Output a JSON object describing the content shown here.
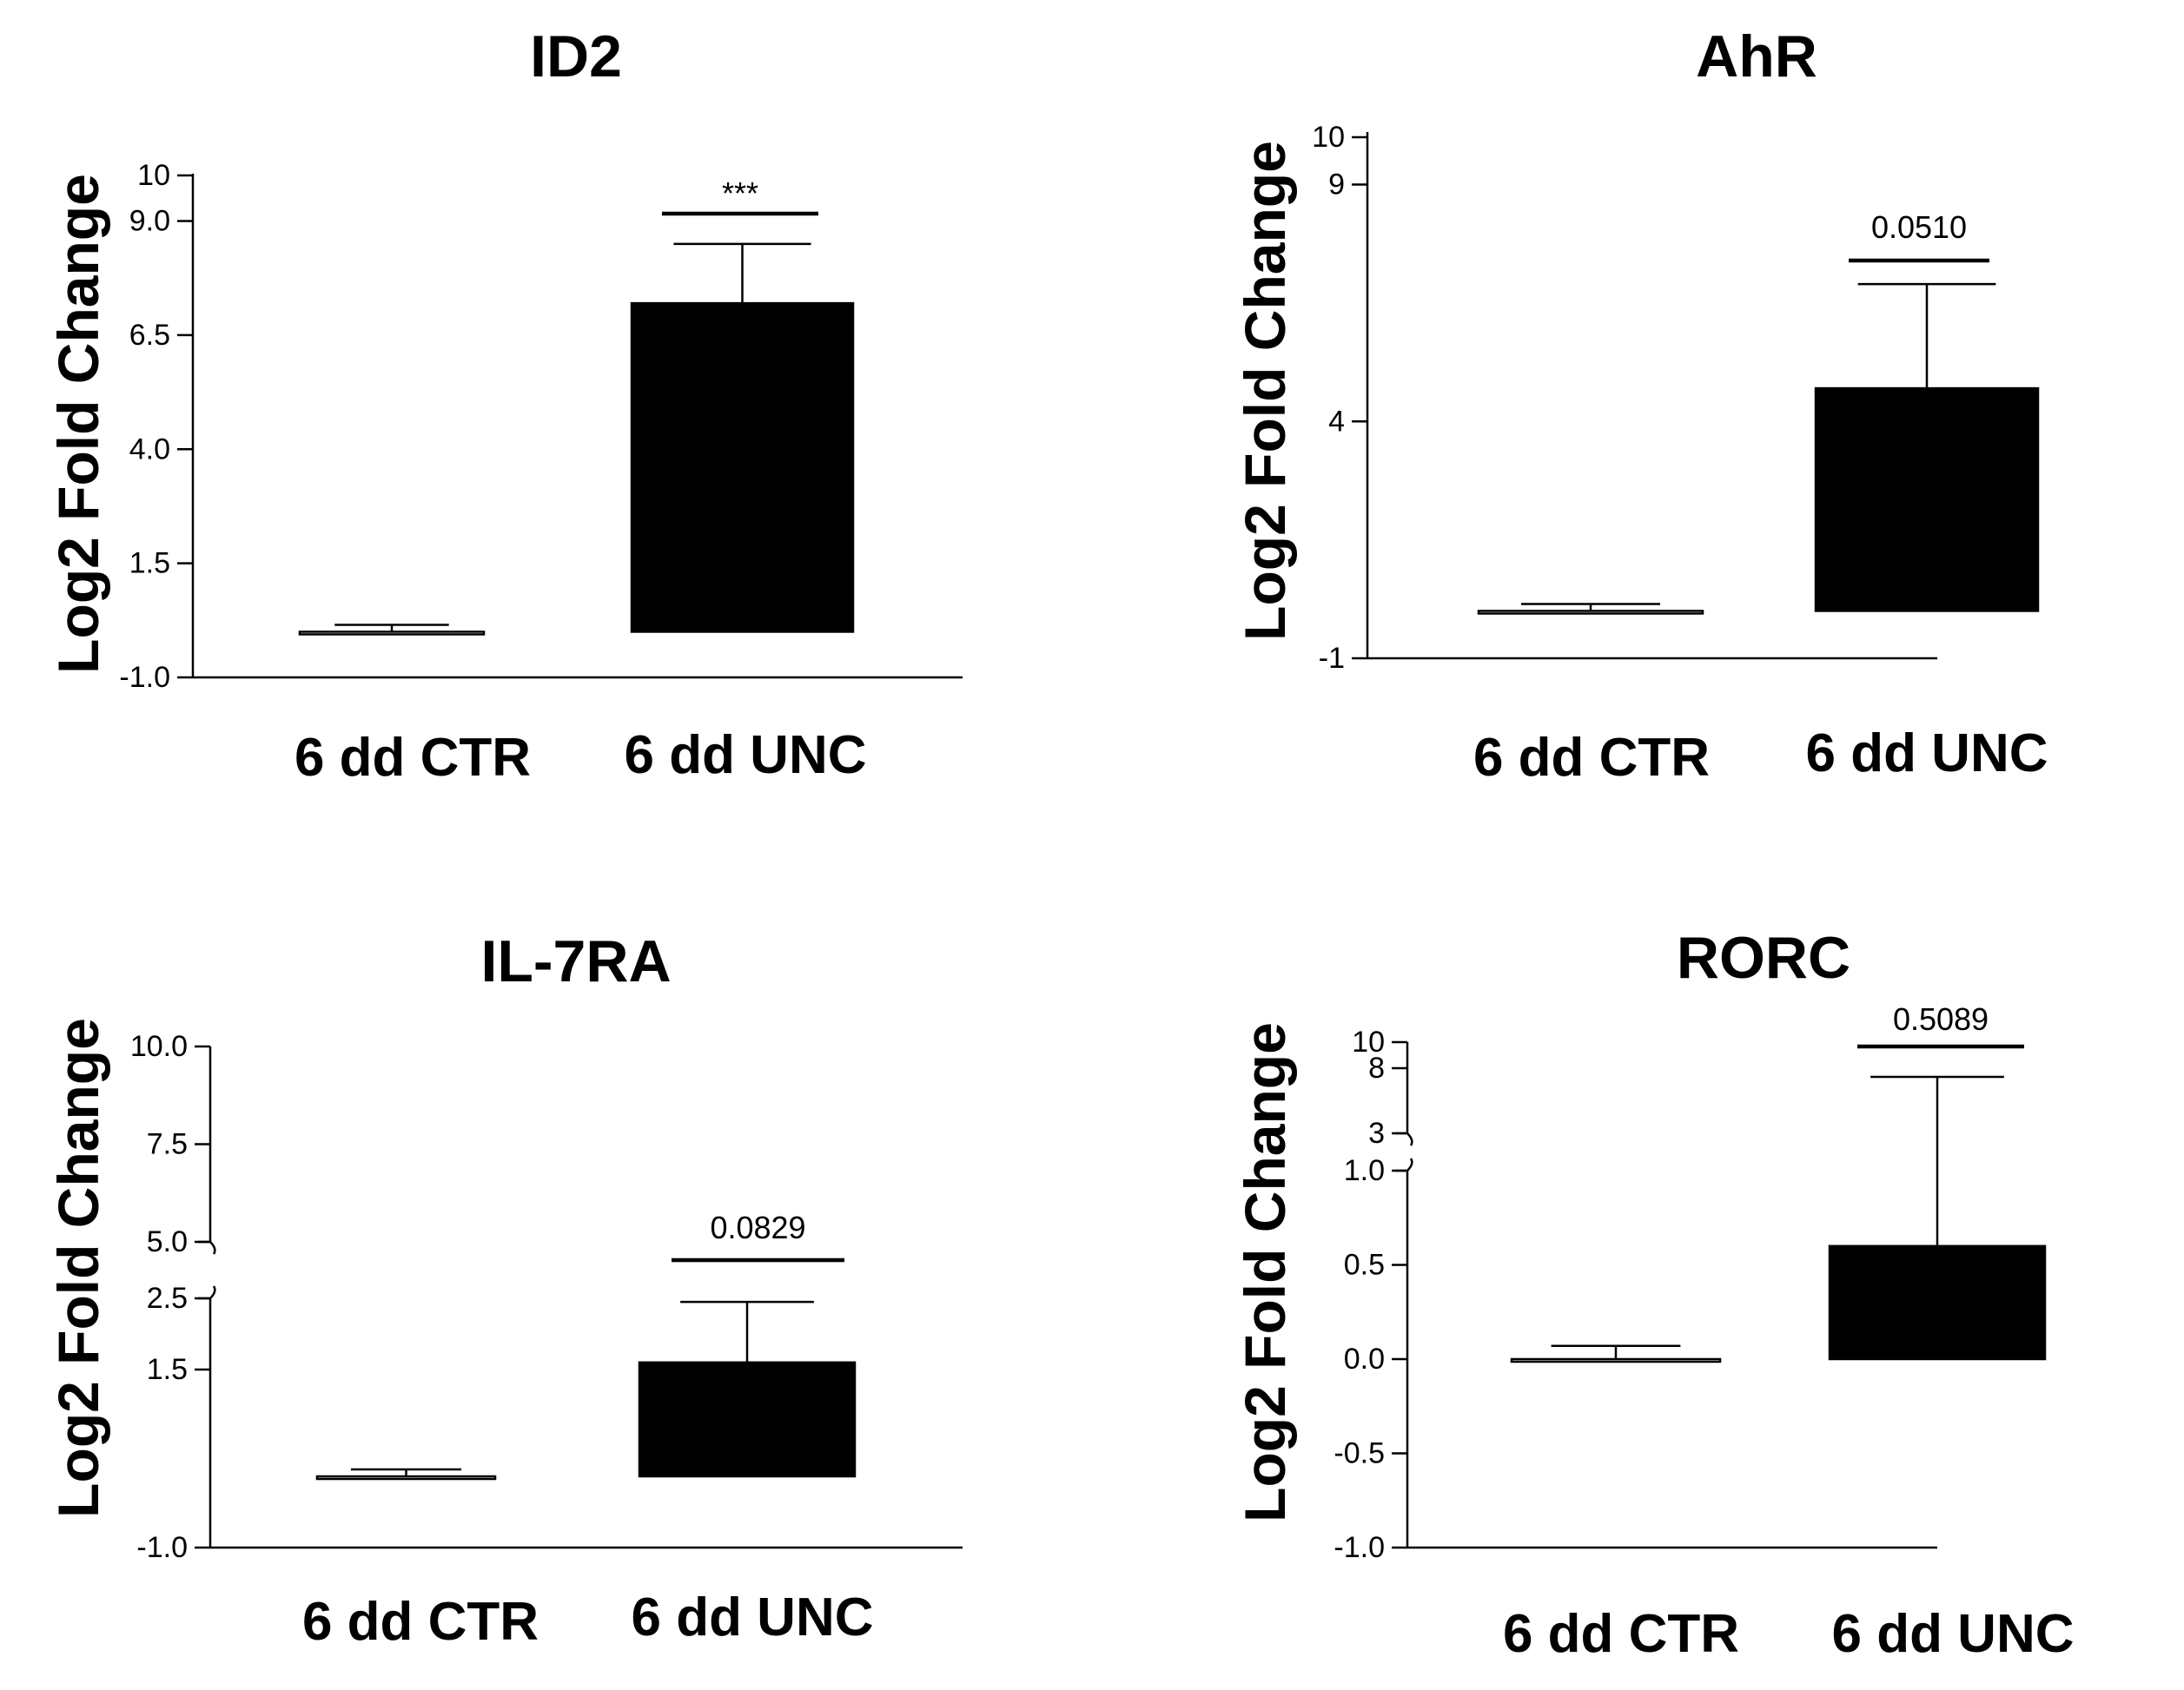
{
  "chart_data": [
    {
      "type": "bar",
      "title": "ID2",
      "xlabel": "",
      "ylabel": "Log2 Fold Change",
      "categories": [
        "6 dd CTR",
        "6 dd UNC"
      ],
      "series": [
        {
          "name": "Log2 Fold Change",
          "values": [
            0.0,
            7.2
          ],
          "errors": [
            0.02,
            1.3
          ]
        }
      ],
      "ylim": [
        -1.0,
        10
      ],
      "yticks": [
        "-1.0",
        "1.5",
        "4.0",
        "6.5",
        "9.0",
        "10"
      ],
      "annotation": "***",
      "colors": {
        "CTR": "#ffffff",
        "UNC": "#000000"
      }
    },
    {
      "type": "bar",
      "title": "AhR",
      "xlabel": "",
      "ylabel": "Log2 Fold Change",
      "categories": [
        "6 dd CTR",
        "6 dd UNC"
      ],
      "series": [
        {
          "name": "Log2 Fold Change",
          "values": [
            0.0,
            4.7
          ],
          "errors": [
            0.05,
            2.2
          ]
        }
      ],
      "ylim": [
        -1,
        10
      ],
      "yticks": [
        "-1",
        "4",
        "9",
        "10"
      ],
      "annotation": "0.0510",
      "colors": {
        "CTR": "#ffffff",
        "UNC": "#000000"
      }
    },
    {
      "type": "bar",
      "title": "IL-7RA",
      "xlabel": "",
      "ylabel": "Log2 Fold Change",
      "categories": [
        "6 dd CTR",
        "6 dd UNC"
      ],
      "series": [
        {
          "name": "Log2 Fold Change",
          "values": [
            0.0,
            1.6
          ],
          "errors": [
            0.08,
            0.85
          ]
        }
      ],
      "ylim": [
        -1.0,
        10.0
      ],
      "yticks": [
        "-1.0",
        "1.5",
        "2.5",
        "5.0",
        "7.5",
        "10.0"
      ],
      "axis_break": [
        2.5,
        5.0
      ],
      "annotation": "0.0829",
      "colors": {
        "CTR": "#ffffff",
        "UNC": "#000000"
      }
    },
    {
      "type": "bar",
      "title": "RORC",
      "xlabel": "",
      "ylabel": "Log2 Fold Change",
      "categories": [
        "6 dd CTR",
        "6 dd UNC"
      ],
      "series": [
        {
          "name": "Log2 Fold Change",
          "values": [
            0.0,
            0.6
          ],
          "errors": [
            0.07,
            7.4
          ]
        }
      ],
      "ylim": [
        -1.0,
        10
      ],
      "yticks": [
        "-1.0",
        "-0.5",
        "0.0",
        "0.5",
        "1.0",
        "3",
        "8",
        "10"
      ],
      "axis_break": [
        1.0,
        3
      ],
      "annotation": "0.5089",
      "colors": {
        "CTR": "#ffffff",
        "UNC": "#000000"
      }
    }
  ]
}
